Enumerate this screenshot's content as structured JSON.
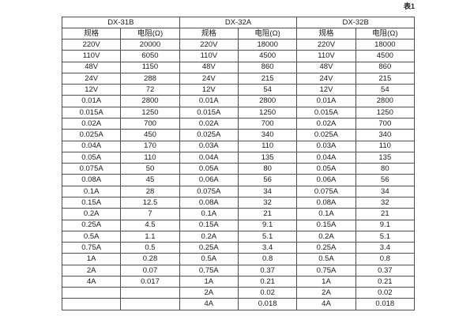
{
  "page": {
    "caption": "表1"
  },
  "colors": {
    "border": "#4f4f4f",
    "text": "#1a1a1a",
    "background": "#ffffff"
  },
  "table": {
    "group_headers": [
      "DX-31B",
      "DX-32A",
      "DX-32B"
    ],
    "column_headers": [
      "规格",
      "电阻(Ω)",
      "规格",
      "电阻(Ω)",
      "规格",
      "电阻(Ω)"
    ],
    "rows": [
      [
        "220V",
        "20000",
        "220V",
        "18000",
        "220V",
        "18000"
      ],
      [
        "110V",
        "6050",
        "110V",
        "4500",
        "110V",
        "4500"
      ],
      [
        "48V",
        "1150",
        "48V",
        "860",
        "48V",
        "860"
      ],
      [
        "24V",
        "288",
        "24V",
        "215",
        "24V",
        "215"
      ],
      [
        "12V",
        "72",
        "12V",
        "54",
        "12V",
        "54"
      ],
      [
        "0.01A",
        "2800",
        "0.01A",
        "2800",
        "0.01A",
        "2800"
      ],
      [
        "0.015A",
        "1250",
        "0.015A",
        "1250",
        "0.015A",
        "1250"
      ],
      [
        "0.02A",
        "700",
        "0.02A",
        "700",
        "0.02A",
        "700"
      ],
      [
        "0.025A",
        "450",
        "0.025A",
        "340",
        "0.025A",
        "340"
      ],
      [
        "0.04A",
        "170",
        "0.03A",
        "110",
        "0.03A",
        "110"
      ],
      [
        "0.05A",
        "110",
        "0.04A",
        "135",
        "0.04A",
        "135"
      ],
      [
        "0.075A",
        "50",
        "0.05A",
        "80",
        "0.05A",
        "80"
      ],
      [
        "0.08A",
        "45",
        "0.06A",
        "56",
        "0.06A",
        "56"
      ],
      [
        "0.1A",
        "28",
        "0.075A",
        "34",
        "0.075A",
        "34"
      ],
      [
        "0.15A",
        "12.5",
        "0.08A",
        "32",
        "0.08A",
        "32"
      ],
      [
        "0.2A",
        "7",
        "0.1A",
        "21",
        "0.1A",
        "21"
      ],
      [
        "0.25A",
        "4.5",
        "0.15A",
        "9.1",
        "0.15A",
        "9.1"
      ],
      [
        "0.5A",
        "1.1",
        "0.2A",
        "5.1",
        "0.2A",
        "5.1"
      ],
      [
        "0.75A",
        "0.5",
        "0.25A",
        "3.4",
        "0.25A",
        "3.4"
      ],
      [
        "1A",
        "0.28",
        "0.5A",
        "0.8",
        "0.5A",
        "0.8"
      ],
      [
        "2A",
        "0.07",
        "0.75A",
        "0.37",
        "0.75A",
        "0.37"
      ],
      [
        "4A",
        "0.017",
        "1A",
        "0.21",
        "1A",
        "0.21"
      ],
      [
        "",
        "",
        "2A",
        "0.02",
        "2A",
        "0.02"
      ],
      [
        "",
        "",
        "4A",
        "0.018",
        "4A",
        "0.018"
      ]
    ]
  }
}
